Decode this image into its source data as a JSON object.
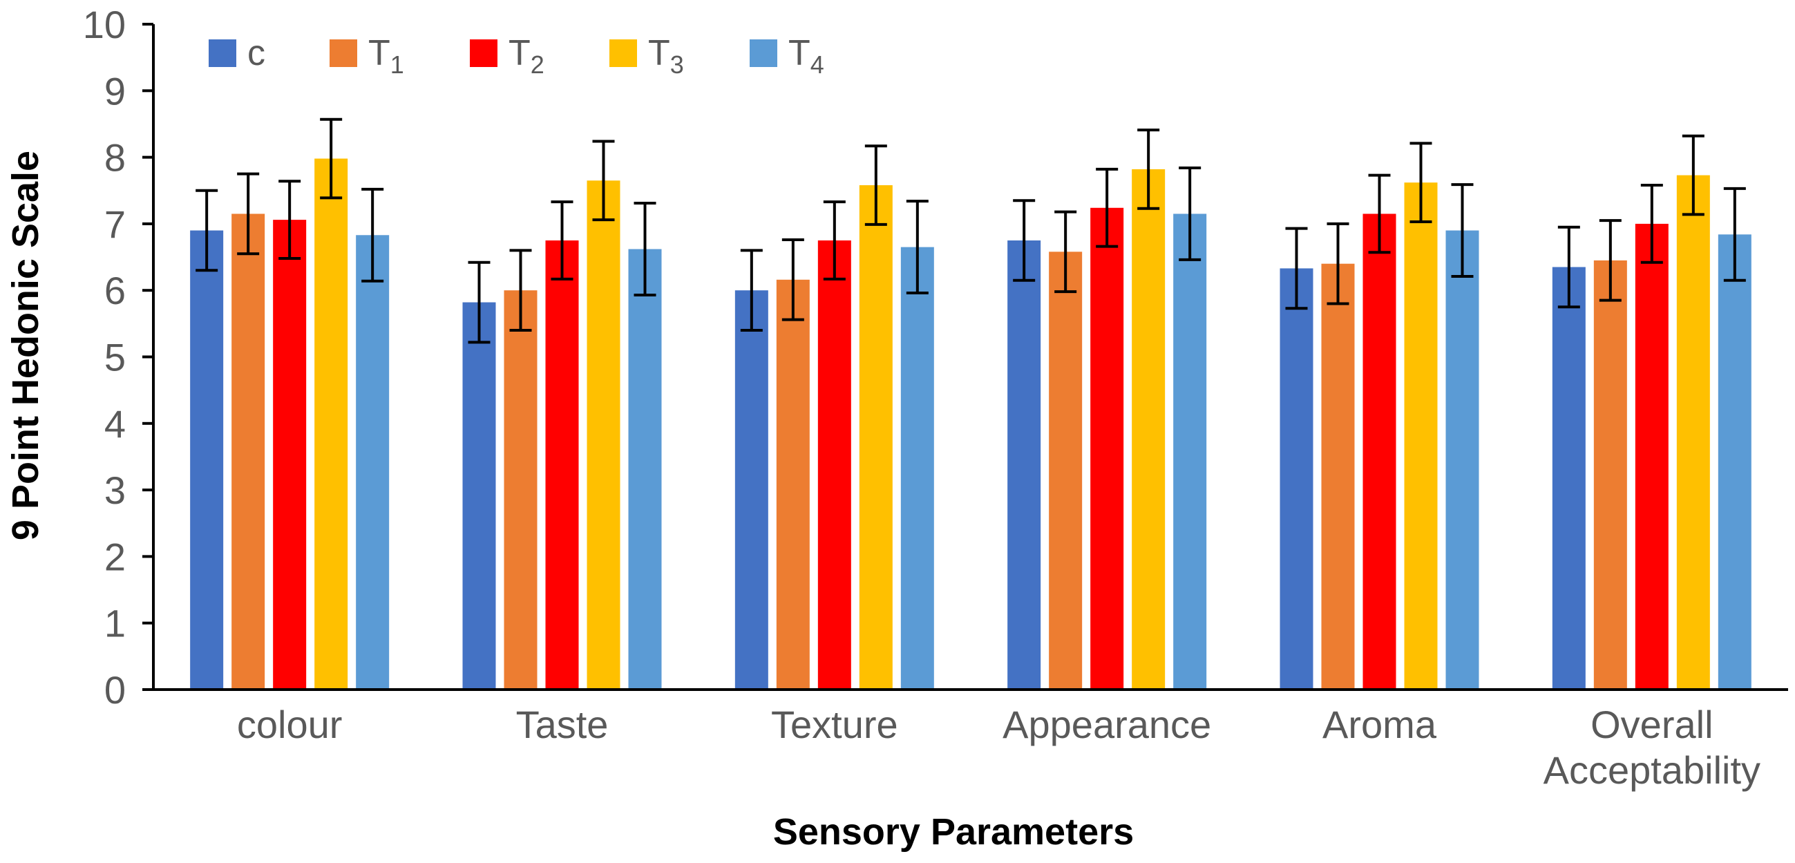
{
  "chart_data": {
    "type": "bar",
    "title": "",
    "xlabel": "Sensory Parameters",
    "ylabel": "9 Point Hedonic Scale",
    "ylim": [
      0,
      10
    ],
    "yticks": [
      "0",
      "1",
      "2",
      "3",
      "4",
      "5",
      "6",
      "7",
      "8",
      "9",
      "10"
    ],
    "grid": false,
    "legend_position": "top-left",
    "categories": [
      [
        "colour"
      ],
      [
        "Taste"
      ],
      [
        "Texture"
      ],
      [
        "Appearance"
      ],
      [
        "Aroma"
      ],
      [
        "Overall",
        "Acceptability"
      ]
    ],
    "series": [
      {
        "name": "c",
        "base": "c",
        "sub": "",
        "color": "#4472C4",
        "values": [
          6.9,
          5.82,
          6.0,
          6.75,
          6.33,
          6.35
        ],
        "errors": [
          0.6,
          0.6,
          0.6,
          0.6,
          0.6,
          0.6
        ]
      },
      {
        "name": "T1",
        "base": "T",
        "sub": "1",
        "color": "#ED7D31",
        "values": [
          7.15,
          6.0,
          6.16,
          6.58,
          6.4,
          6.45
        ],
        "errors": [
          0.6,
          0.6,
          0.6,
          0.6,
          0.6,
          0.6
        ]
      },
      {
        "name": "T2",
        "base": "T",
        "sub": "2",
        "color": "#FF0000",
        "values": [
          7.06,
          6.75,
          6.75,
          7.24,
          7.15,
          7.0
        ],
        "errors": [
          0.58,
          0.58,
          0.58,
          0.58,
          0.58,
          0.58
        ]
      },
      {
        "name": "T3",
        "base": "T",
        "sub": "3",
        "color": "#FFC000",
        "values": [
          7.98,
          7.65,
          7.58,
          7.82,
          7.62,
          7.73
        ],
        "errors": [
          0.59,
          0.59,
          0.59,
          0.59,
          0.59,
          0.59
        ]
      },
      {
        "name": "T4",
        "base": "T",
        "sub": "4",
        "color": "#5B9BD5",
        "values": [
          6.83,
          6.62,
          6.65,
          7.15,
          6.9,
          6.84
        ],
        "errors": [
          0.69,
          0.69,
          0.69,
          0.69,
          0.69,
          0.69
        ]
      }
    ]
  }
}
